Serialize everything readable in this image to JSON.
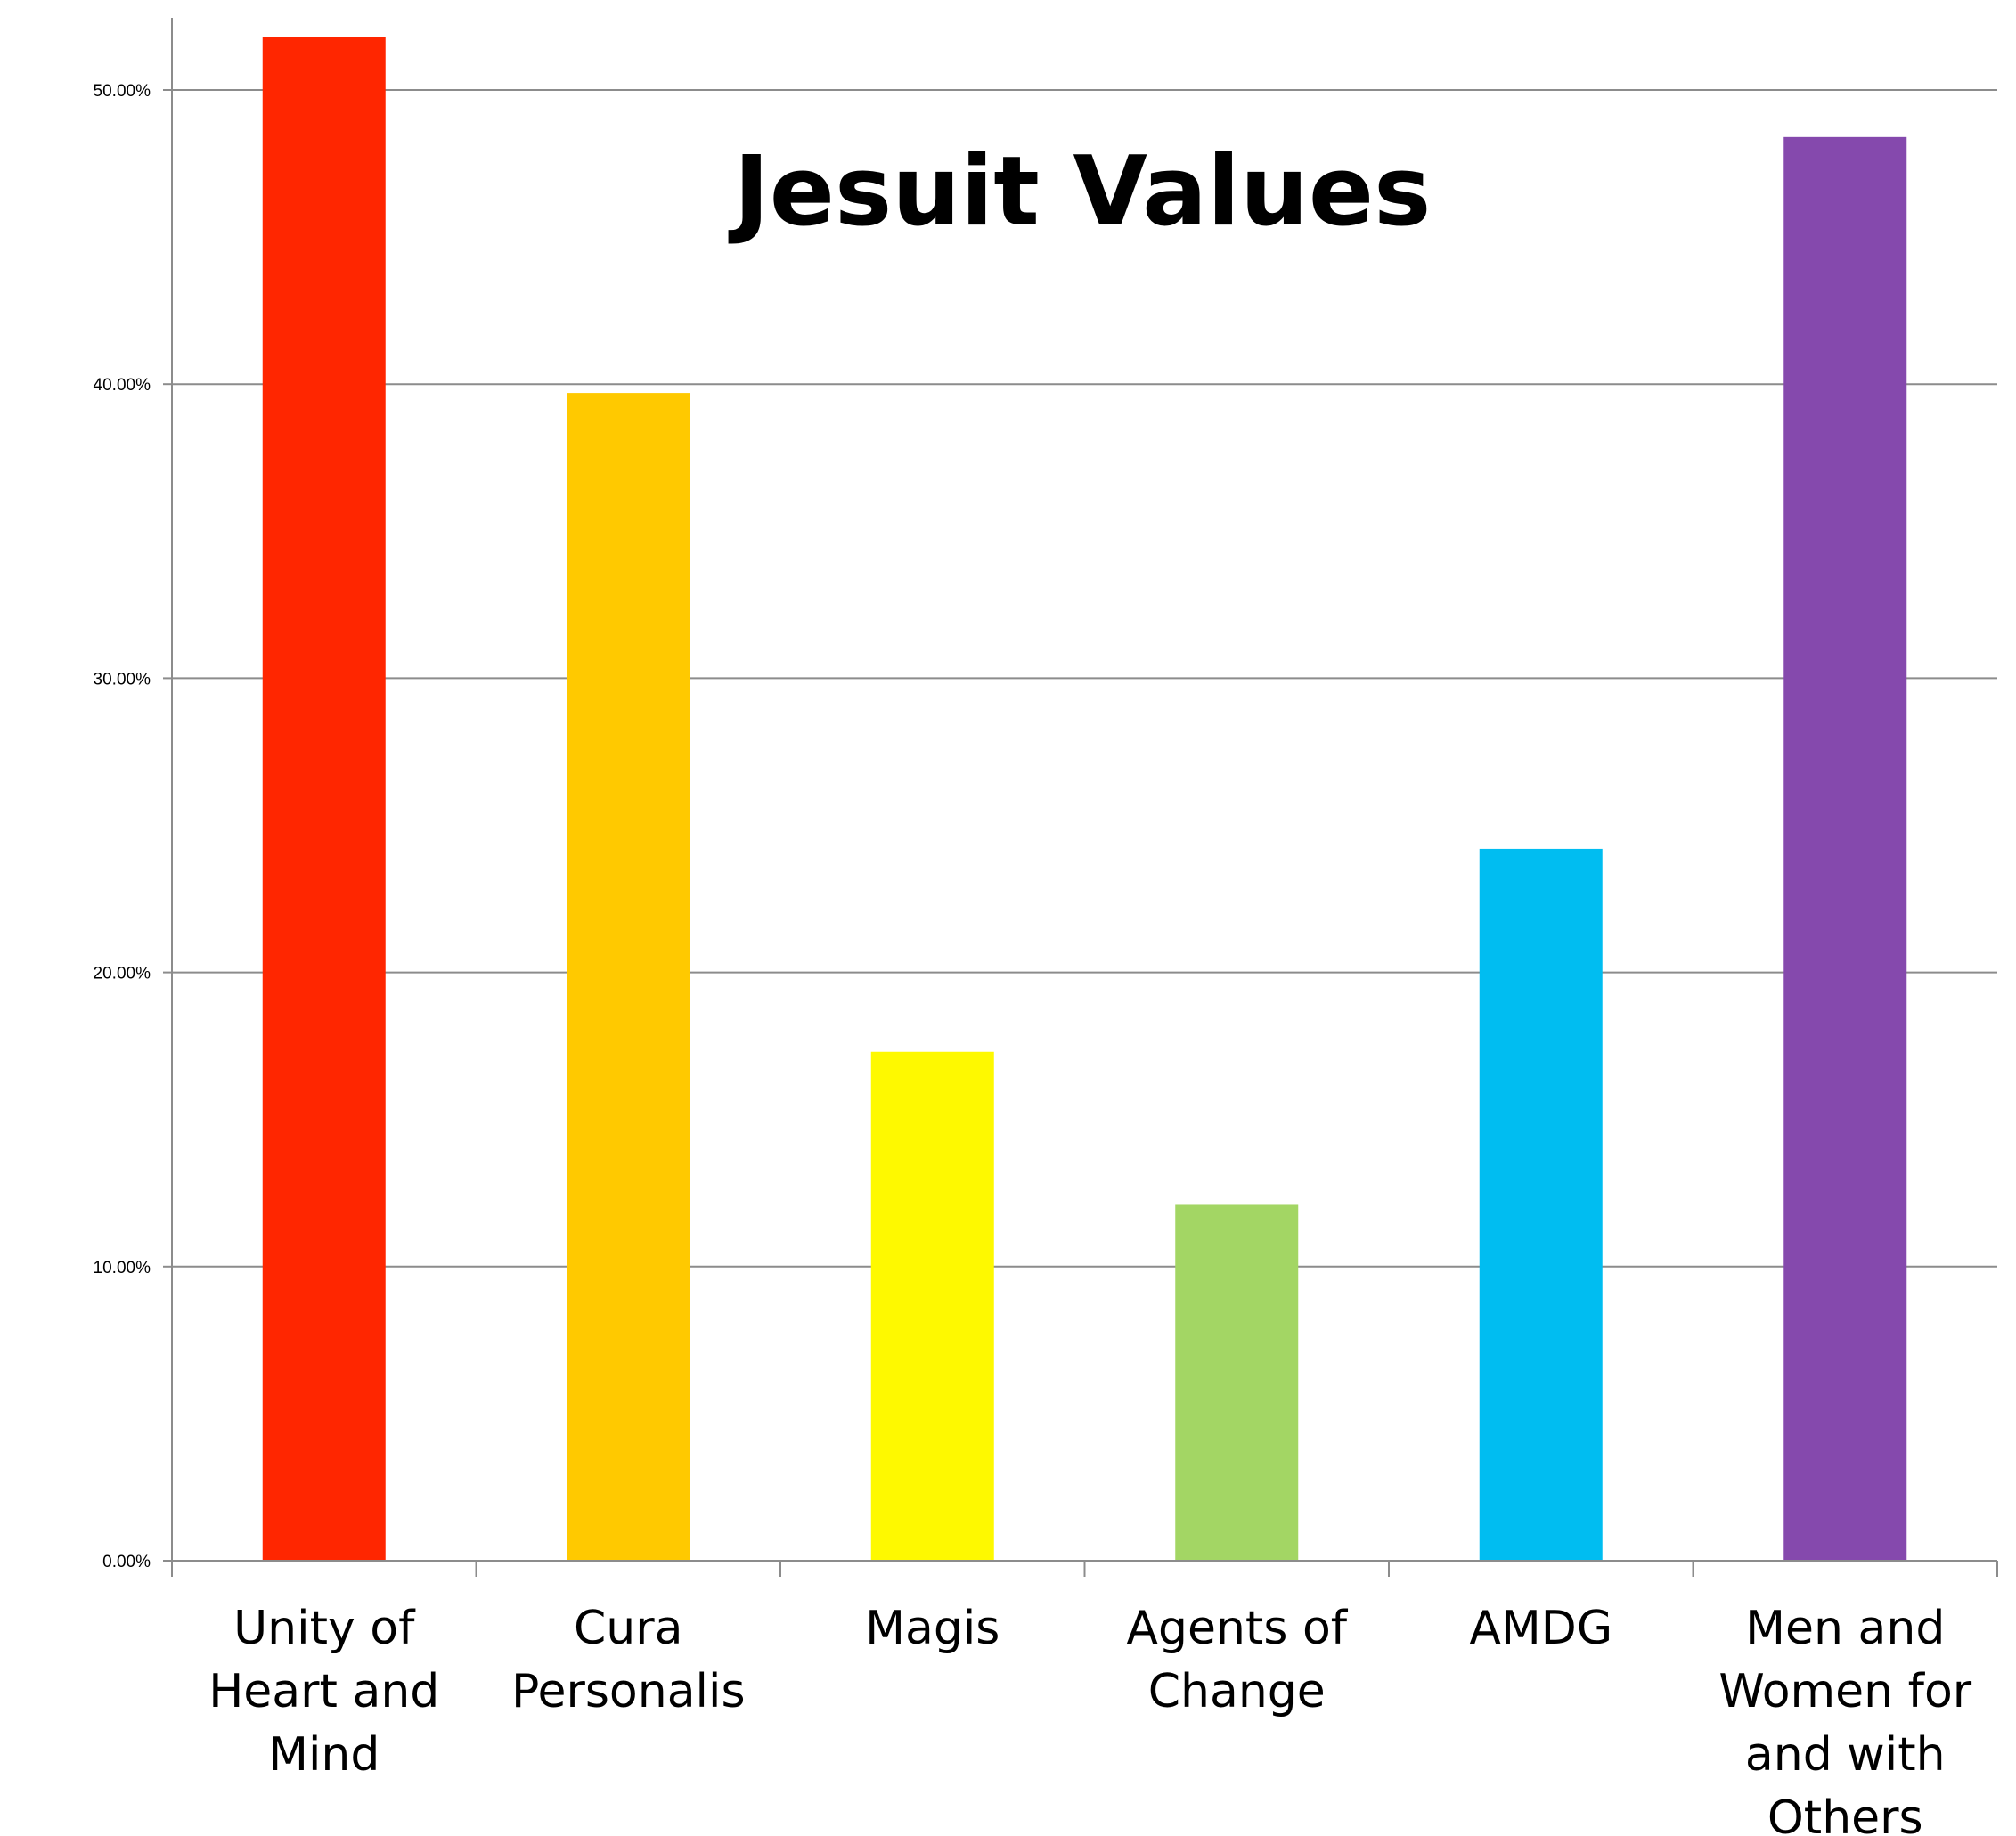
{
  "chart_data": {
    "type": "bar",
    "title": "Jesuit Values",
    "xlabel": "",
    "ylabel": "",
    "ylim": [
      0,
      0.5
    ],
    "y_tick_values": [
      0,
      0.1,
      0.2,
      0.3,
      0.4,
      0.5
    ],
    "y_tick_labels": [
      "0.00%",
      "10.00%",
      "20.00%",
      "30.00%",
      "40.00%",
      "50.00%"
    ],
    "grid": true,
    "legend": "none",
    "categories": [
      [
        "Unity of",
        "Heart and",
        "Mind"
      ],
      [
        "Cura",
        "Personalis"
      ],
      [
        "Magis"
      ],
      [
        "Agents of",
        "Change"
      ],
      [
        "AMDG"
      ],
      [
        "Men and",
        "Women for",
        "and with",
        "Others"
      ]
    ],
    "values": [
      0.518,
      0.397,
      0.173,
      0.121,
      0.242,
      0.484
    ],
    "colors": [
      "#ff2600",
      "#ffc900",
      "#fef900",
      "#a3d664",
      "#00bdf1",
      "#8549ad"
    ]
  }
}
